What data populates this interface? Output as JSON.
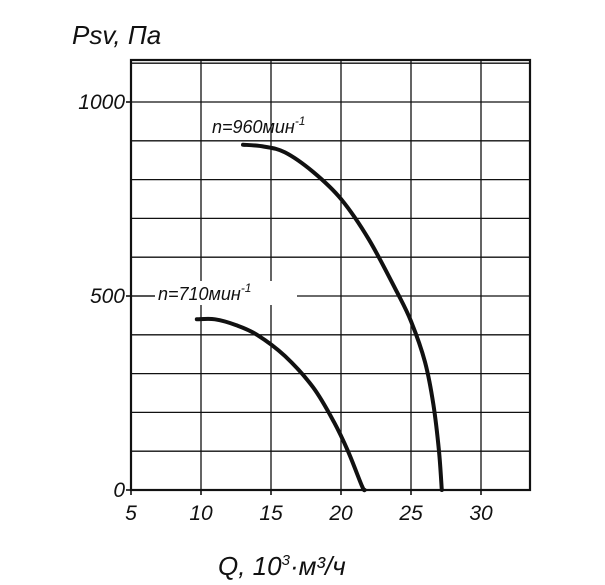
{
  "chart_data": {
    "type": "line",
    "ylabel": "Psv, Па",
    "xlabel_main": "Q, 10",
    "xlabel_exp": "3",
    "xlabel_unit": "·м³/ч",
    "xlim": [
      5,
      33
    ],
    "ylim": [
      0,
      1000
    ],
    "x_ticks": [
      5,
      10,
      15,
      20,
      25,
      30
    ],
    "y_ticks": [
      0,
      500,
      1000
    ],
    "grid": true,
    "series": [
      {
        "name": "n=960мин",
        "name_sup": "-1",
        "points": [
          [
            13,
            890
          ],
          [
            14.5,
            885
          ],
          [
            16,
            870
          ],
          [
            18,
            820
          ],
          [
            20,
            750
          ],
          [
            22,
            645
          ],
          [
            24,
            510
          ],
          [
            25,
            435
          ],
          [
            26,
            330
          ],
          [
            26.6,
            220
          ],
          [
            27,
            100
          ],
          [
            27.2,
            0
          ]
        ]
      },
      {
        "name": "n=710мин",
        "name_sup": "-1",
        "points": [
          [
            9.7,
            440
          ],
          [
            11,
            440
          ],
          [
            12.5,
            425
          ],
          [
            14,
            400
          ],
          [
            16,
            345
          ],
          [
            18,
            265
          ],
          [
            19.5,
            175
          ],
          [
            20.5,
            100
          ],
          [
            21.5,
            10
          ],
          [
            21.7,
            0
          ]
        ]
      }
    ],
    "colors": {
      "line": "#111111",
      "grid": "#111111",
      "background": "#ffffff"
    }
  }
}
